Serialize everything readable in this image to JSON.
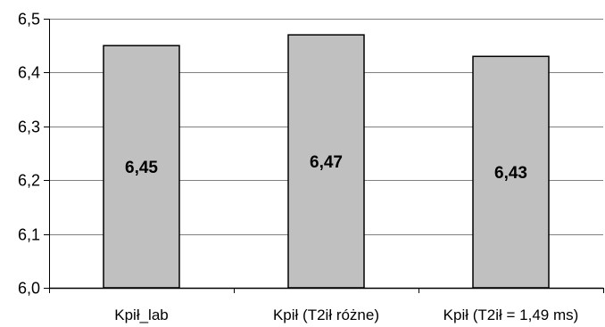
{
  "chart_data": {
    "type": "bar",
    "title": "",
    "xlabel": "",
    "ylabel": "",
    "categories": [
      "Kpił_lab",
      "Kpił (T2ił różne)",
      "Kpił (T2ił = 1,49 ms)"
    ],
    "values": [
      6.45,
      6.47,
      6.43
    ],
    "data_labels": [
      "6,45",
      "6,47",
      "6,43"
    ],
    "ylim": [
      6.0,
      6.5
    ],
    "yticks": [
      6.0,
      6.1,
      6.2,
      6.3,
      6.4,
      6.5
    ],
    "ytick_labels": [
      "6,0",
      "6,1",
      "6,2",
      "6,3",
      "6,4",
      "6,5"
    ],
    "grid": true,
    "legend": "none",
    "colors": {
      "bar_fill": "#c0c0c0",
      "bar_stroke": "#000000",
      "grid": "#808080",
      "axis": "#000000"
    }
  }
}
